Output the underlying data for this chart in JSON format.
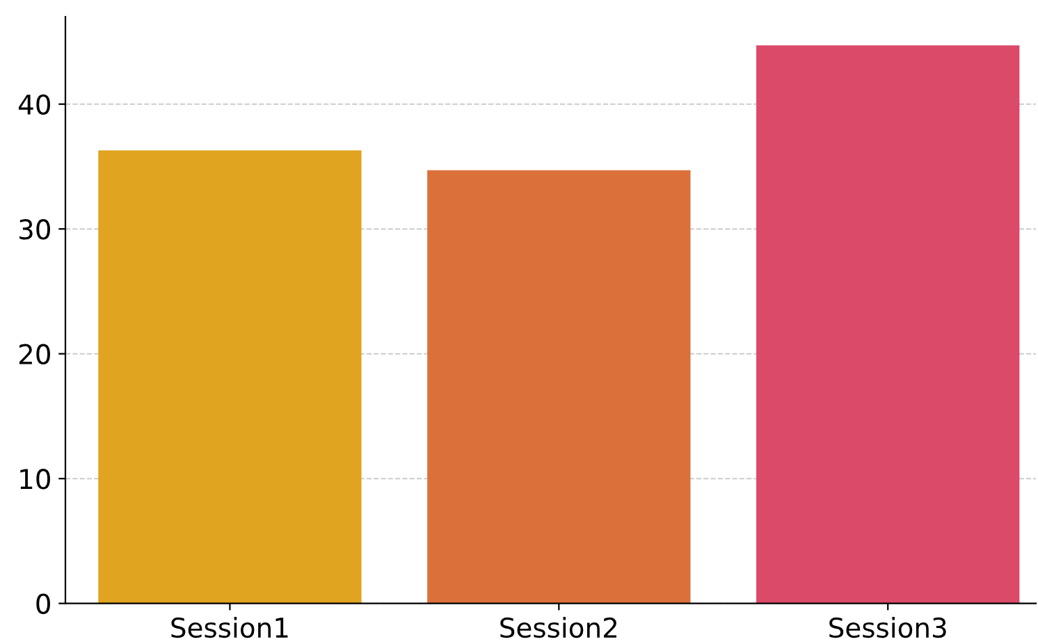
{
  "chart_data": {
    "type": "bar",
    "categories": [
      "Session1",
      "Session2",
      "Session3"
    ],
    "values": [
      36.3,
      34.7,
      44.7
    ],
    "colors": [
      "#e0a420",
      "#db703a",
      "#db4a68"
    ],
    "ylim": [
      0,
      47
    ],
    "yticks": [
      0,
      10,
      20,
      30,
      40
    ],
    "grid": "y"
  }
}
